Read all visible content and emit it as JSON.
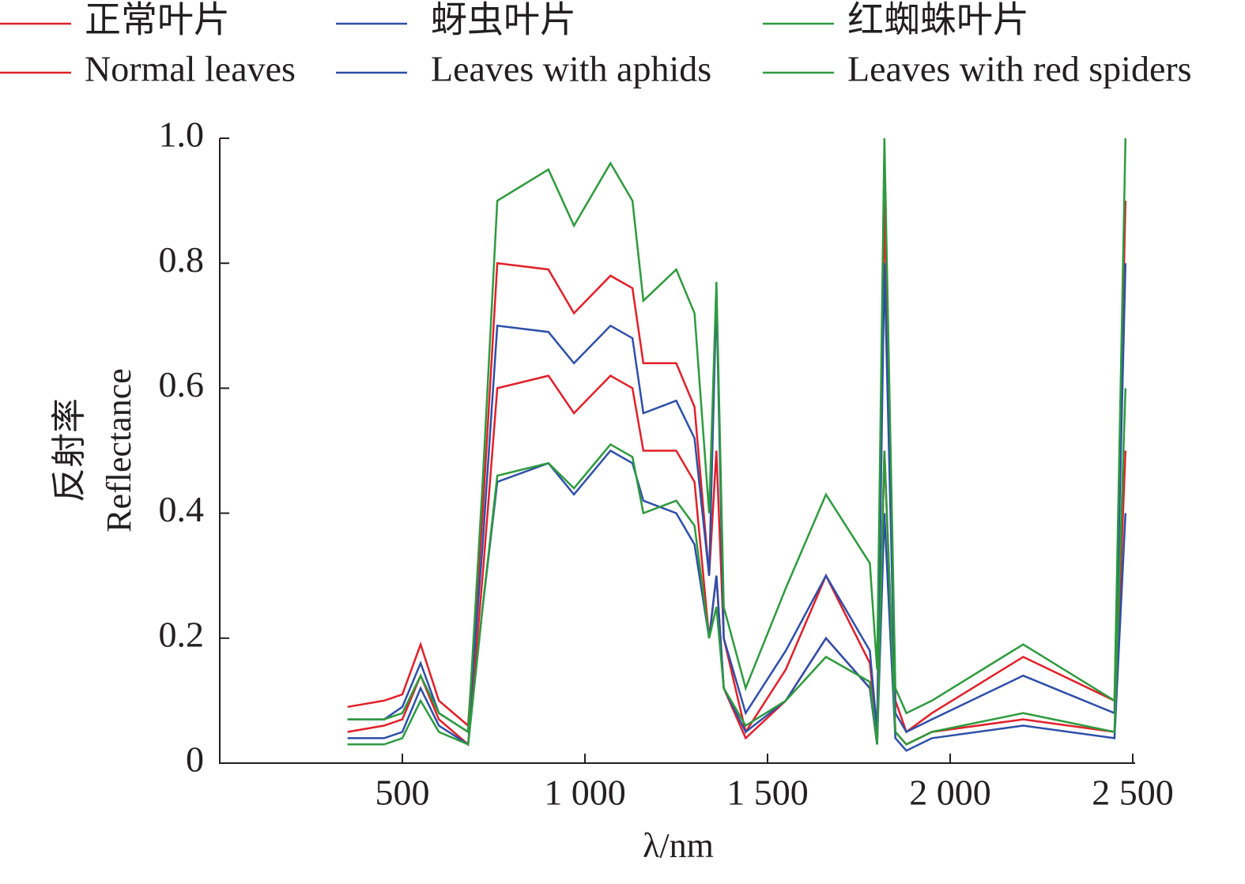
{
  "chart_data": {
    "type": "line",
    "x_label": "λ/nm",
    "y_label": "反射率",
    "y_label_en": "Reflectance",
    "xlim": [
      0,
      2500
    ],
    "xticks": [
      500,
      {
        "value": 1000,
        "label": "1 000"
      },
      {
        "value": 1500,
        "label": "1 500"
      },
      {
        "value": 2000,
        "label": "2 000"
      },
      {
        "value": 2500,
        "label": "2 500"
      }
    ],
    "ylim": [
      0,
      1
    ],
    "yticks": [
      0,
      0.2,
      0.4,
      0.6,
      0.8,
      {
        "value": 1,
        "label": "1.0"
      }
    ],
    "x": [
      350,
      450,
      500,
      550,
      600,
      680,
      720,
      760,
      900,
      970,
      1070,
      1130,
      1160,
      1250,
      1300,
      1340,
      1360,
      1380,
      1440,
      1550,
      1660,
      1780,
      1800,
      1820,
      1850,
      1880,
      1950,
      2200,
      2450,
      2480
    ],
    "series": [
      {
        "name": "正常叶片",
        "name_en": "Normal leaves",
        "color": "#e0202a",
        "curves": [
          [
            0.09,
            0.1,
            0.11,
            0.19,
            0.1,
            0.06,
            0.4,
            0.8,
            0.79,
            0.72,
            0.78,
            0.76,
            0.64,
            0.64,
            0.57,
            0.3,
            0.5,
            0.2,
            0.05,
            0.15,
            0.3,
            0.16,
            0.05,
            0.9,
            0.1,
            0.05,
            0.08,
            0.17,
            0.1,
            0.9
          ],
          [
            0.05,
            0.06,
            0.07,
            0.14,
            0.07,
            0.03,
            0.3,
            0.6,
            0.62,
            0.56,
            0.62,
            0.6,
            0.5,
            0.5,
            0.45,
            0.2,
            0.3,
            0.12,
            0.04,
            0.1,
            0.2,
            0.12,
            0.03,
            0.5,
            0.05,
            0.03,
            0.05,
            0.07,
            0.05,
            0.5
          ]
        ]
      },
      {
        "name": "蚜虫叶片",
        "name_en": "Leaves with aphids",
        "color": "#2e4fa8",
        "curves": [
          [
            0.07,
            0.07,
            0.09,
            0.16,
            0.08,
            0.05,
            0.35,
            0.7,
            0.69,
            0.64,
            0.7,
            0.68,
            0.56,
            0.58,
            0.52,
            0.3,
            0.75,
            0.2,
            0.08,
            0.18,
            0.3,
            0.18,
            0.05,
            0.8,
            0.08,
            0.05,
            0.07,
            0.14,
            0.08,
            0.8
          ],
          [
            0.04,
            0.04,
            0.05,
            0.12,
            0.06,
            0.03,
            0.25,
            0.45,
            0.48,
            0.43,
            0.5,
            0.48,
            0.42,
            0.4,
            0.35,
            0.2,
            0.3,
            0.12,
            0.05,
            0.1,
            0.2,
            0.12,
            0.03,
            0.4,
            0.04,
            0.02,
            0.04,
            0.06,
            0.04,
            0.4
          ]
        ]
      },
      {
        "name": "红蜘蛛叶片",
        "name_en": "Leaves with red spiders",
        "color": "#2e9a3e",
        "curves": [
          [
            0.07,
            0.07,
            0.08,
            0.14,
            0.08,
            0.05,
            0.45,
            0.9,
            0.95,
            0.86,
            0.96,
            0.9,
            0.74,
            0.79,
            0.72,
            0.4,
            0.77,
            0.25,
            0.12,
            0.28,
            0.43,
            0.32,
            0.15,
            1.0,
            0.12,
            0.08,
            0.1,
            0.19,
            0.1,
            1.0
          ],
          [
            0.03,
            0.03,
            0.04,
            0.1,
            0.05,
            0.03,
            0.25,
            0.46,
            0.48,
            0.44,
            0.51,
            0.49,
            0.4,
            0.42,
            0.38,
            0.2,
            0.25,
            0.12,
            0.06,
            0.1,
            0.17,
            0.13,
            0.03,
            0.5,
            0.05,
            0.03,
            0.05,
            0.08,
            0.05,
            0.6
          ]
        ]
      }
    ]
  }
}
